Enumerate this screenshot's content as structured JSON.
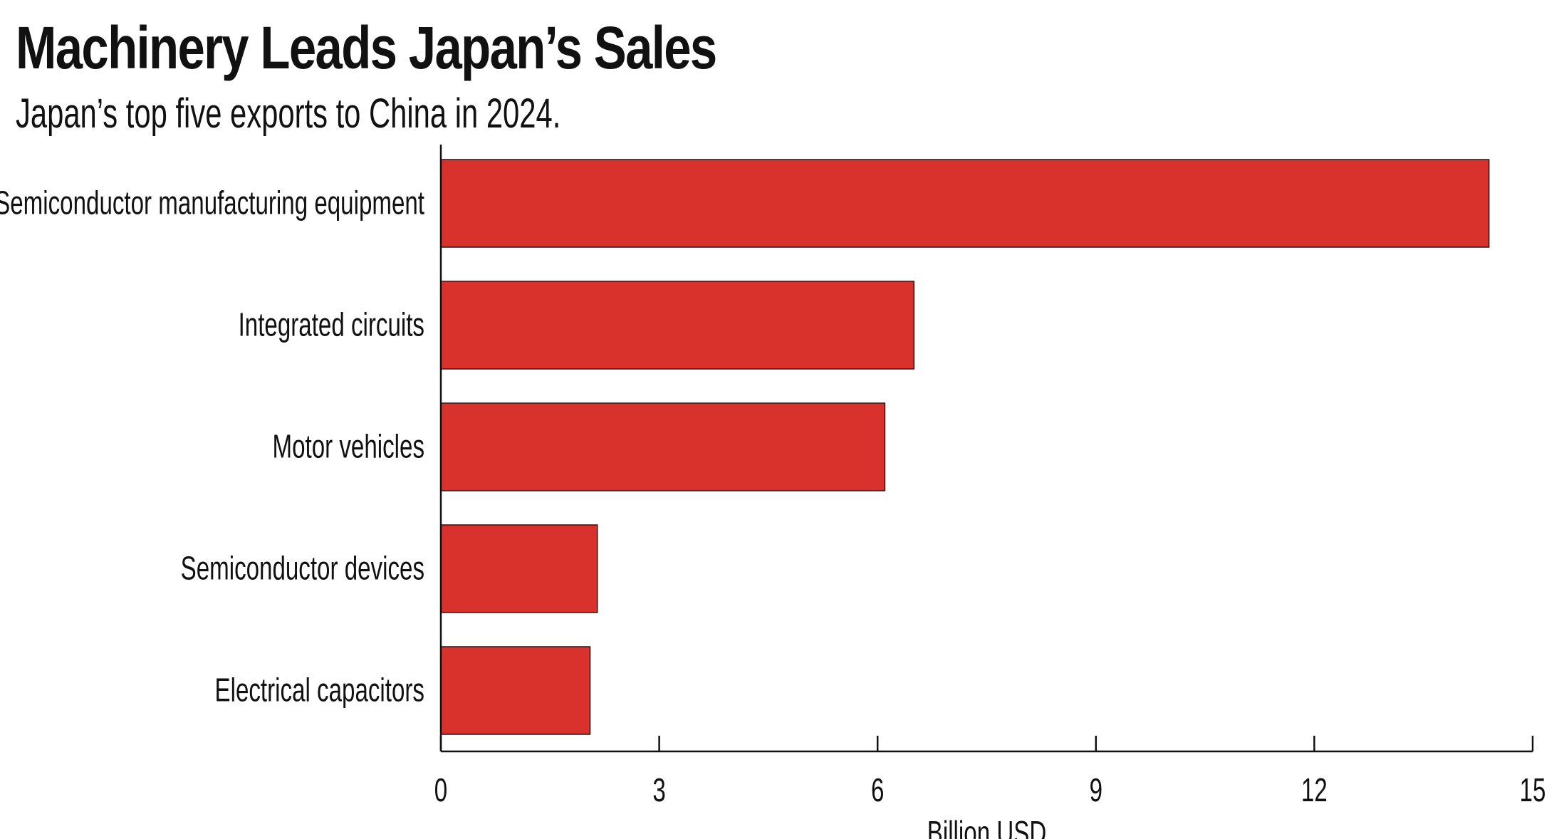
{
  "chart_data": {
    "type": "bar",
    "orientation": "horizontal",
    "title": "Machinery Leads Japan’s Sales",
    "subtitle": "Japan’s top five exports to China in 2024.",
    "xlabel": "Billion USD",
    "ylabel": "",
    "categories": [
      "Semiconductor manufacturing equipment",
      "Integrated circuits",
      "Motor vehicles",
      "Semiconductor devices",
      "Electrical capacitors"
    ],
    "values": [
      14.4,
      6.5,
      6.1,
      2.15,
      2.05
    ],
    "xlim": [
      0,
      15
    ],
    "xticks": [
      "0",
      "3",
      "6",
      "9",
      "12",
      "15"
    ],
    "grid": false,
    "legend": "none",
    "bar_color": "#d9312b",
    "bar_edge_color": "#3a1010"
  }
}
